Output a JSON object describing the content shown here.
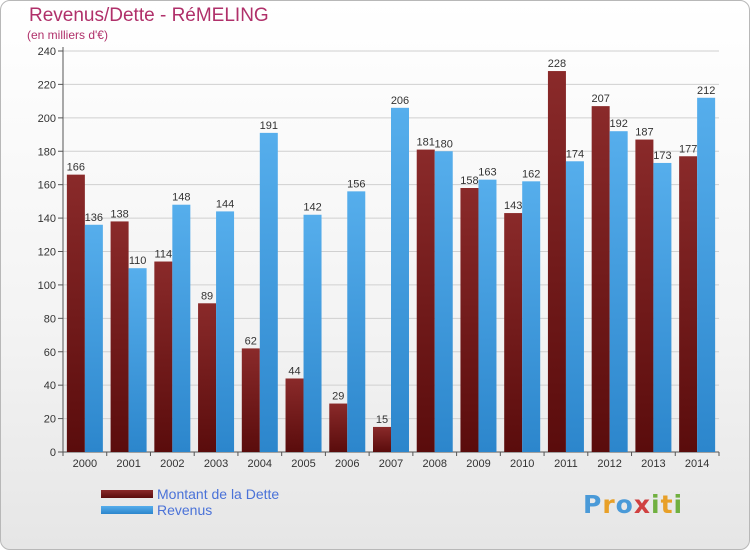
{
  "title": "Revenus/Dette - RéMELING",
  "subtitle": "(en milliers d'€)",
  "logo": {
    "letters": [
      "P",
      "r",
      "o",
      "x",
      "i",
      "t",
      "i"
    ],
    "colors": [
      "#4a9ad8",
      "#e8a028",
      "#4a9ad8",
      "#d04040",
      "#70b040",
      "#e8a028",
      "#70b040"
    ]
  },
  "legend": [
    {
      "label": "Montant de la Dette",
      "color": "#7a1c1c"
    },
    {
      "label": "Revenus",
      "color": "#4aa0e0"
    }
  ],
  "chart_data": {
    "type": "bar",
    "categories": [
      "2000",
      "2001",
      "2002",
      "2003",
      "2004",
      "2005",
      "2006",
      "2007",
      "2008",
      "2009",
      "2010",
      "2011",
      "2012",
      "2013",
      "2014"
    ],
    "series": [
      {
        "name": "Montant de la Dette",
        "color": "#7a1c1c",
        "values": [
          166,
          138,
          114,
          89,
          62,
          44,
          29,
          15,
          181,
          158,
          143,
          228,
          207,
          187,
          177
        ]
      },
      {
        "name": "Revenus",
        "color": "#4aa0e0",
        "values": [
          136,
          110,
          148,
          144,
          191,
          142,
          156,
          206,
          180,
          163,
          162,
          174,
          192,
          173,
          212
        ]
      }
    ],
    "ylim": [
      0,
      240
    ],
    "yticks": [
      0,
      20,
      40,
      60,
      80,
      100,
      120,
      140,
      160,
      180,
      200,
      220,
      240
    ],
    "grid": true,
    "legend_position": "bottom-left"
  }
}
